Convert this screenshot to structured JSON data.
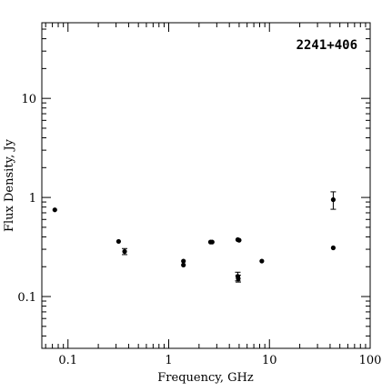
{
  "chart_data": {
    "type": "scatter",
    "title": "2241+406",
    "xlabel": "Frequency, GHz",
    "ylabel": "Flux Density, Jy",
    "x_scale": "log",
    "y_scale": "log",
    "xlim": [
      0.055,
      100
    ],
    "ylim": [
      0.03,
      58
    ],
    "x_ticklabels": [
      "0.1",
      "1",
      "10",
      "100"
    ],
    "y_ticklabels": [
      "0.1",
      "1",
      "10"
    ],
    "grid": false,
    "points": [
      {
        "x": 0.074,
        "y": 0.75,
        "err": null
      },
      {
        "x": 0.318,
        "y": 0.36,
        "err": null
      },
      {
        "x": 0.365,
        "y": 0.285,
        "err": 0.02
      },
      {
        "x": 1.4,
        "y": 0.228,
        "err": null
      },
      {
        "x": 1.4,
        "y": 0.208,
        "err": null
      },
      {
        "x": 2.6,
        "y": 0.355,
        "err": null
      },
      {
        "x": 2.7,
        "y": 0.355,
        "err": null
      },
      {
        "x": 4.85,
        "y": 0.375,
        "err": null
      },
      {
        "x": 5.0,
        "y": 0.37,
        "err": null
      },
      {
        "x": 4.85,
        "y": 0.16,
        "err": 0.016
      },
      {
        "x": 4.9,
        "y": 0.152,
        "err": 0.012
      },
      {
        "x": 8.4,
        "y": 0.228,
        "err": null
      },
      {
        "x": 43.0,
        "y": 0.31,
        "err": null
      },
      {
        "x": 43.0,
        "y": 0.95,
        "err": 0.19
      }
    ]
  }
}
